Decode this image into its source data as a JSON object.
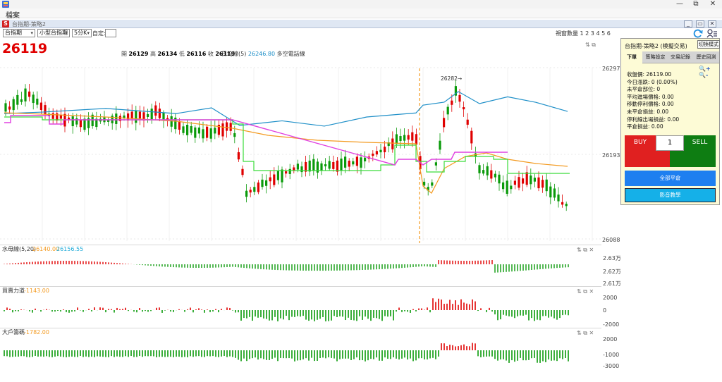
{
  "os": {
    "file_menu": "檔案",
    "minimize": "—",
    "maximize": "⧉",
    "close": "✕"
  },
  "mdi": {
    "icon_text": "S",
    "title": "台指期-策略2"
  },
  "toolbar": {
    "market": "台指期",
    "product": "小型台指期",
    "interval": "5分K",
    "custom_label": "自定:",
    "view_count": "視窗數量 1 2 3 4 5 6"
  },
  "header": {
    "price": "26119",
    "open_label": "開",
    "open": "26129",
    "high_label": "高",
    "high": "26134",
    "low_label": "低",
    "low": "26116",
    "close_label": "收",
    "close": "26119",
    "ma_label": "日均線(5)",
    "ma_value": "26246.80",
    "ma_note": "多空電話線"
  },
  "main_chart": {
    "price_labels": [
      "26297",
      "26193",
      "26088"
    ],
    "peak_label": "26282→",
    "colors": {
      "up": "#e00000",
      "down": "#0a9a0a",
      "ma_short": "#f39a20",
      "ma_long": "#1e8fc8",
      "trail": "#3adc3a",
      "pink": "#e040e0",
      "divider": "#f39a20"
    }
  },
  "sub1": {
    "title": "水母線(5,20)",
    "v1": "26140.00",
    "v2": "26156.55",
    "labels": [
      "2.63万",
      "2.62万",
      "2.61万"
    ]
  },
  "sub2": {
    "title": "買賣力道",
    "value": "-1143.00",
    "labels": [
      "2000",
      "0",
      "-2000"
    ]
  },
  "sub3": {
    "title": "大戶籌碼",
    "value": "-1782.00",
    "labels": [
      "2000",
      "-1000",
      "-3000"
    ]
  },
  "panel": {
    "title": "台指期-策略2 (模擬交易)",
    "switch_mode": "切換模式",
    "tabs": [
      "下單",
      "策略設定",
      "交易記錄",
      "歷史回測"
    ],
    "zoom": "🔍+ 🔍-",
    "info": [
      "收盤價: 26119.00",
      "今日漲跌: 0 (0.00%)",
      "未平倉部位: 0",
      "平均進場價格: 0.00",
      "移動停利價格: 0.00",
      "未平倉損益: 0.00",
      "停利線出場損益: 0.00",
      "平倉損益: 0.00"
    ],
    "buy": "BUY",
    "qty": "1",
    "sell": "SELL",
    "close_all": "全部平倉",
    "tutorial": "影音教學"
  }
}
